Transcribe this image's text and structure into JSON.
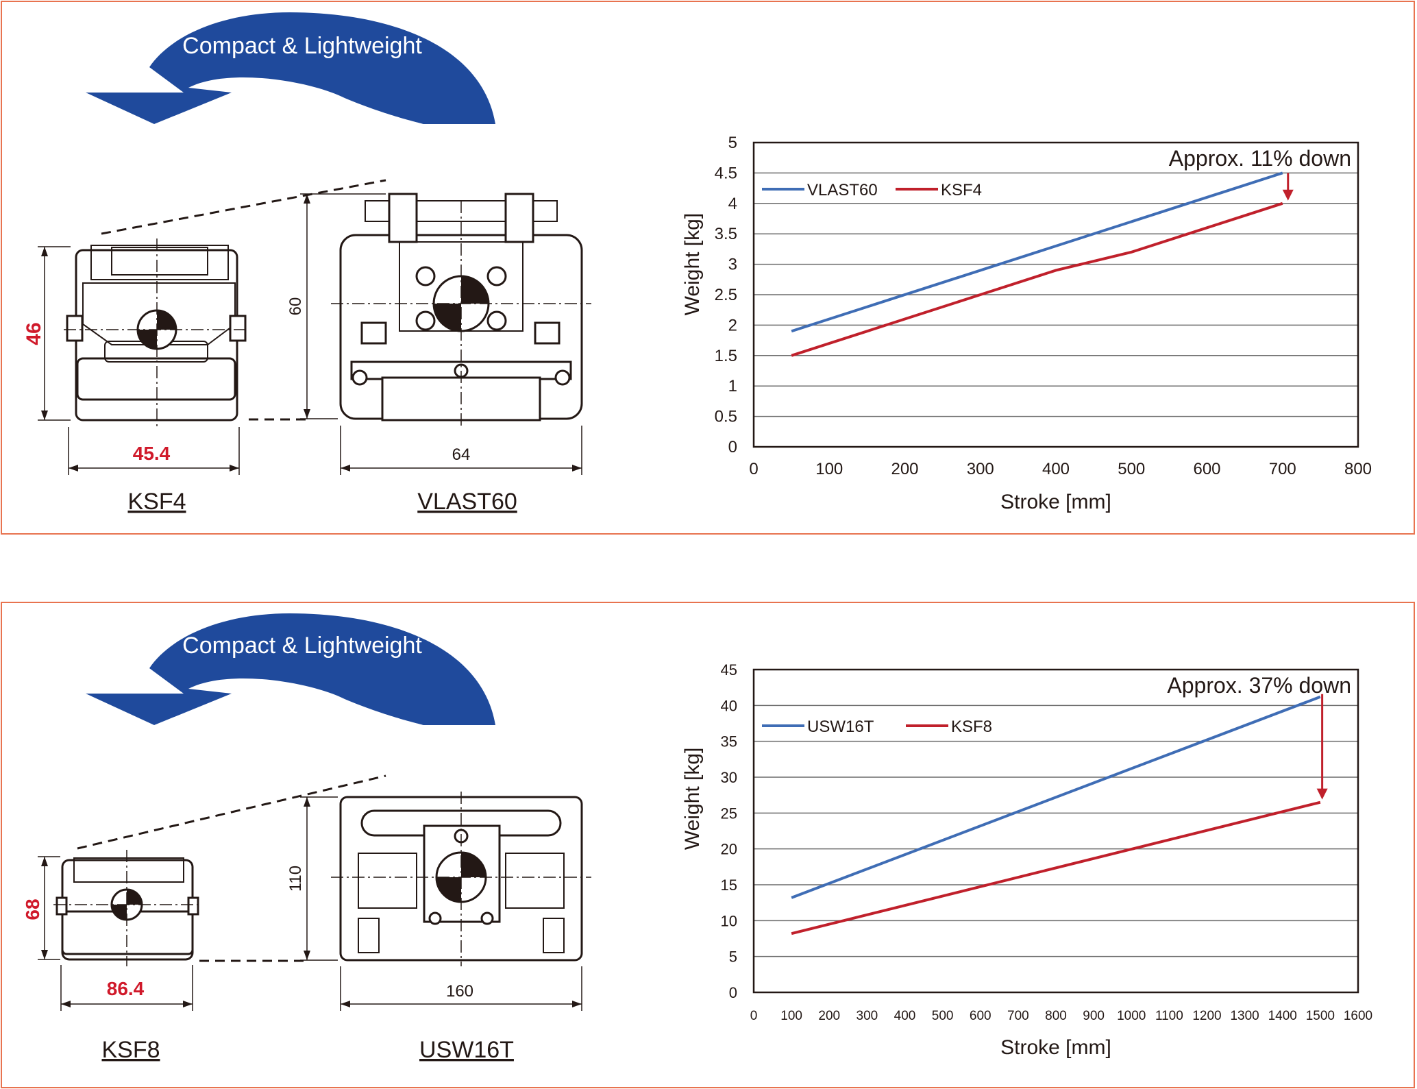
{
  "colors": {
    "panel_border": "#e8734f",
    "arrow_fill": "#1f4a9c",
    "dimension_red": "#d0192a",
    "series_blue": "#3f6db5",
    "series_red": "#c0202b"
  },
  "panels": [
    {
      "arrow_text": "Compact & Lightweight",
      "small": {
        "name": "KSF4",
        "height_dim": "46",
        "width_dim": "45.4"
      },
      "large": {
        "name": "VLAST60",
        "height_dim": "60",
        "width_dim": "64"
      },
      "chart_data": {
        "type": "line",
        "title": "",
        "xlabel": "Stroke [mm]",
        "ylabel": "Weight [kg]",
        "xlim": [
          0,
          800
        ],
        "ylim": [
          0,
          5
        ],
        "xticks": [
          "0",
          "100",
          "200",
          "300",
          "400",
          "500",
          "600",
          "700",
          "800"
        ],
        "yticks": [
          "0",
          "0.5",
          "1",
          "1.5",
          "2",
          "2.5",
          "3",
          "3.5",
          "4",
          "4.5",
          "5"
        ],
        "grid": "horizontal",
        "legend_position": "top-left",
        "annotation": "Approx. 11% down",
        "series": [
          {
            "name": "VLAST60",
            "color": "#3f6db5",
            "x": [
              50,
              700
            ],
            "y": [
              1.9,
              4.5
            ]
          },
          {
            "name": "KSF4",
            "color": "#c0202b",
            "x": [
              50,
              200,
              300,
              400,
              500,
              600,
              700
            ],
            "y": [
              1.5,
              2.1,
              2.5,
              2.9,
              3.2,
              3.6,
              4.0
            ]
          }
        ]
      }
    },
    {
      "arrow_text": "Compact & Lightweight",
      "small": {
        "name": "KSF8",
        "height_dim": "68",
        "width_dim": "86.4"
      },
      "large": {
        "name": "USW16T",
        "height_dim": "110",
        "width_dim": "160"
      },
      "chart_data": {
        "type": "line",
        "title": "",
        "xlabel": "Stroke [mm]",
        "ylabel": "Weight [kg]",
        "xlim": [
          0,
          1600
        ],
        "ylim": [
          0,
          45
        ],
        "xticks": [
          "0",
          "100",
          "200",
          "300",
          "400",
          "500",
          "600",
          "700",
          "800",
          "900",
          "1000",
          "1100",
          "1200",
          "1300",
          "1400",
          "1500",
          "1600"
        ],
        "yticks": [
          "0",
          "5",
          "10",
          "15",
          "20",
          "25",
          "30",
          "35",
          "40",
          "45"
        ],
        "grid": "horizontal",
        "legend_position": "top-left",
        "annotation": "Approx. 37% down",
        "series": [
          {
            "name": "USW16T",
            "color": "#3f6db5",
            "x": [
              100,
              1500
            ],
            "y": [
              13.2,
              41.2
            ]
          },
          {
            "name": "KSF8",
            "color": "#c0202b",
            "x": [
              100,
              1500
            ],
            "y": [
              8.2,
              26.5
            ]
          }
        ]
      }
    }
  ]
}
